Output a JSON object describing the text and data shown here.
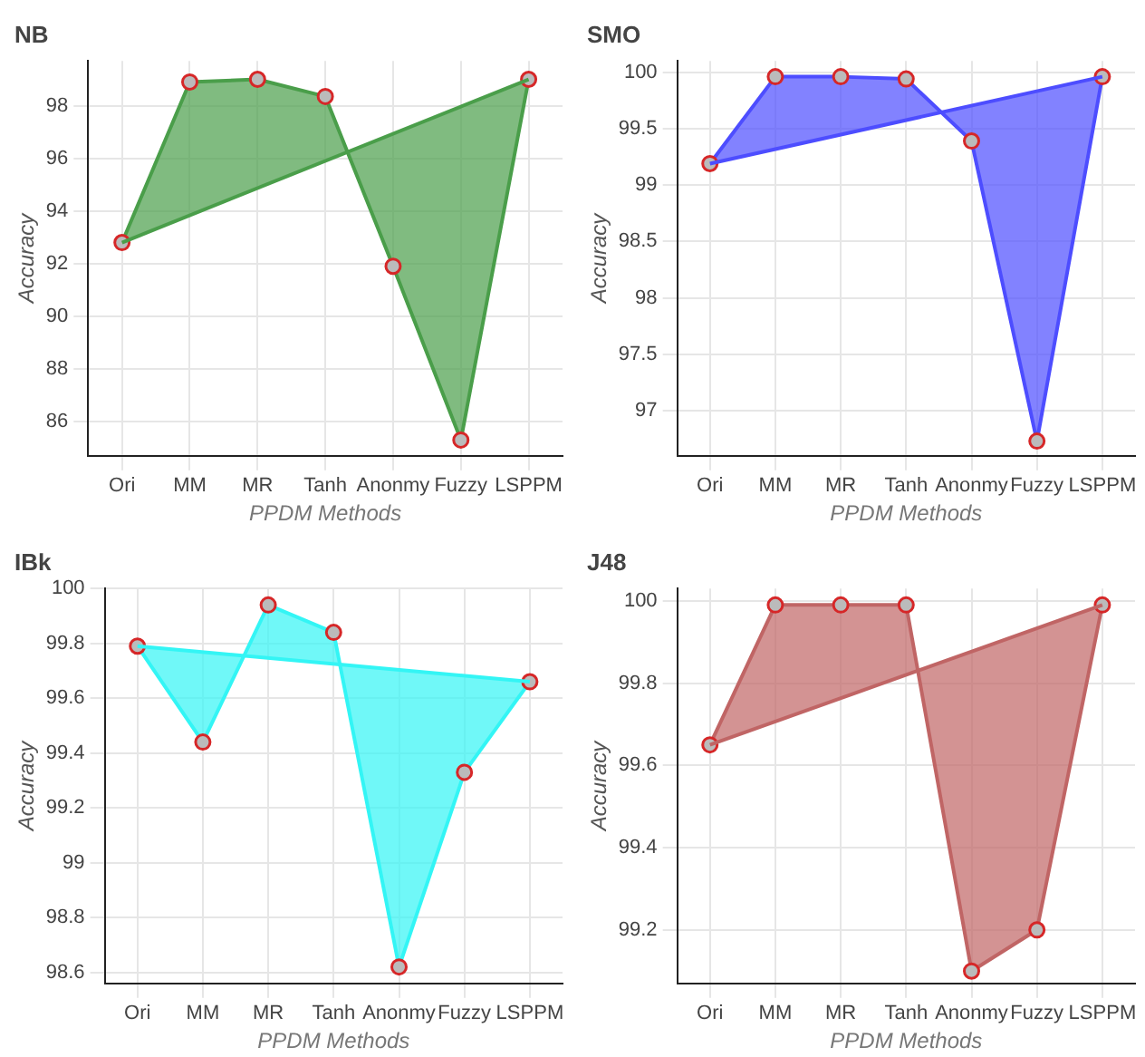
{
  "chart_data": [
    {
      "type": "area",
      "title": "NB",
      "xlabel": "PPDM Methods",
      "ylabel": "Accuracy",
      "categories": [
        "Ori",
        "MM",
        "MR",
        "Tanh",
        "Anonmy",
        "Fuzzy",
        "LSPPM"
      ],
      "series": [
        {
          "color": "#4a9e4a",
          "values": [
            92.8,
            98.9,
            99.0,
            98.35,
            91.9,
            85.3,
            99.0
          ]
        }
      ],
      "ylim": [
        84.7,
        99.7
      ],
      "yticks": [
        86,
        88,
        90,
        92,
        94,
        96,
        98
      ],
      "grid": true,
      "marker": "circle"
    },
    {
      "type": "area",
      "title": "SMO",
      "xlabel": "PPDM Methods",
      "ylabel": "Accuracy",
      "categories": [
        "Ori",
        "MM",
        "MR",
        "Tanh",
        "Anonmy",
        "Fuzzy",
        "LSPPM"
      ],
      "series": [
        {
          "color": "#4d4dff",
          "values": [
            99.19,
            99.96,
            99.96,
            99.94,
            99.39,
            96.73,
            99.96
          ]
        }
      ],
      "ylim": [
        96.6,
        100.1
      ],
      "yticks": [
        97,
        97.5,
        98,
        98.5,
        99,
        99.5,
        100
      ],
      "grid": true,
      "marker": "circle"
    },
    {
      "type": "area",
      "title": "IBk",
      "xlabel": "PPDM Methods",
      "ylabel": "Accuracy",
      "categories": [
        "Ori",
        "MM",
        "MR",
        "Tanh",
        "Anonmy",
        "Fuzzy",
        "LSPPM"
      ],
      "series": [
        {
          "color": "#33f5f5",
          "values": [
            99.79,
            99.44,
            99.94,
            99.84,
            98.62,
            99.33,
            99.66
          ]
        }
      ],
      "ylim": [
        98.56,
        100
      ],
      "yticks": [
        98.6,
        98.8,
        99,
        99.2,
        99.4,
        99.6,
        99.8,
        100
      ],
      "grid": true,
      "marker": "circle"
    },
    {
      "type": "area",
      "title": "J48",
      "xlabel": "PPDM Methods",
      "ylabel": "Accuracy",
      "categories": [
        "Ori",
        "MM",
        "MR",
        "Tanh",
        "Anonmy",
        "Fuzzy",
        "LSPPM"
      ],
      "series": [
        {
          "color": "#c06565",
          "values": [
            99.65,
            99.99,
            99.99,
            99.99,
            99.1,
            99.2,
            99.99
          ]
        }
      ],
      "ylim": [
        99.07,
        100.03
      ],
      "yticks": [
        99.2,
        99.4,
        99.6,
        99.8,
        100
      ],
      "grid": true,
      "marker": "circle"
    }
  ]
}
